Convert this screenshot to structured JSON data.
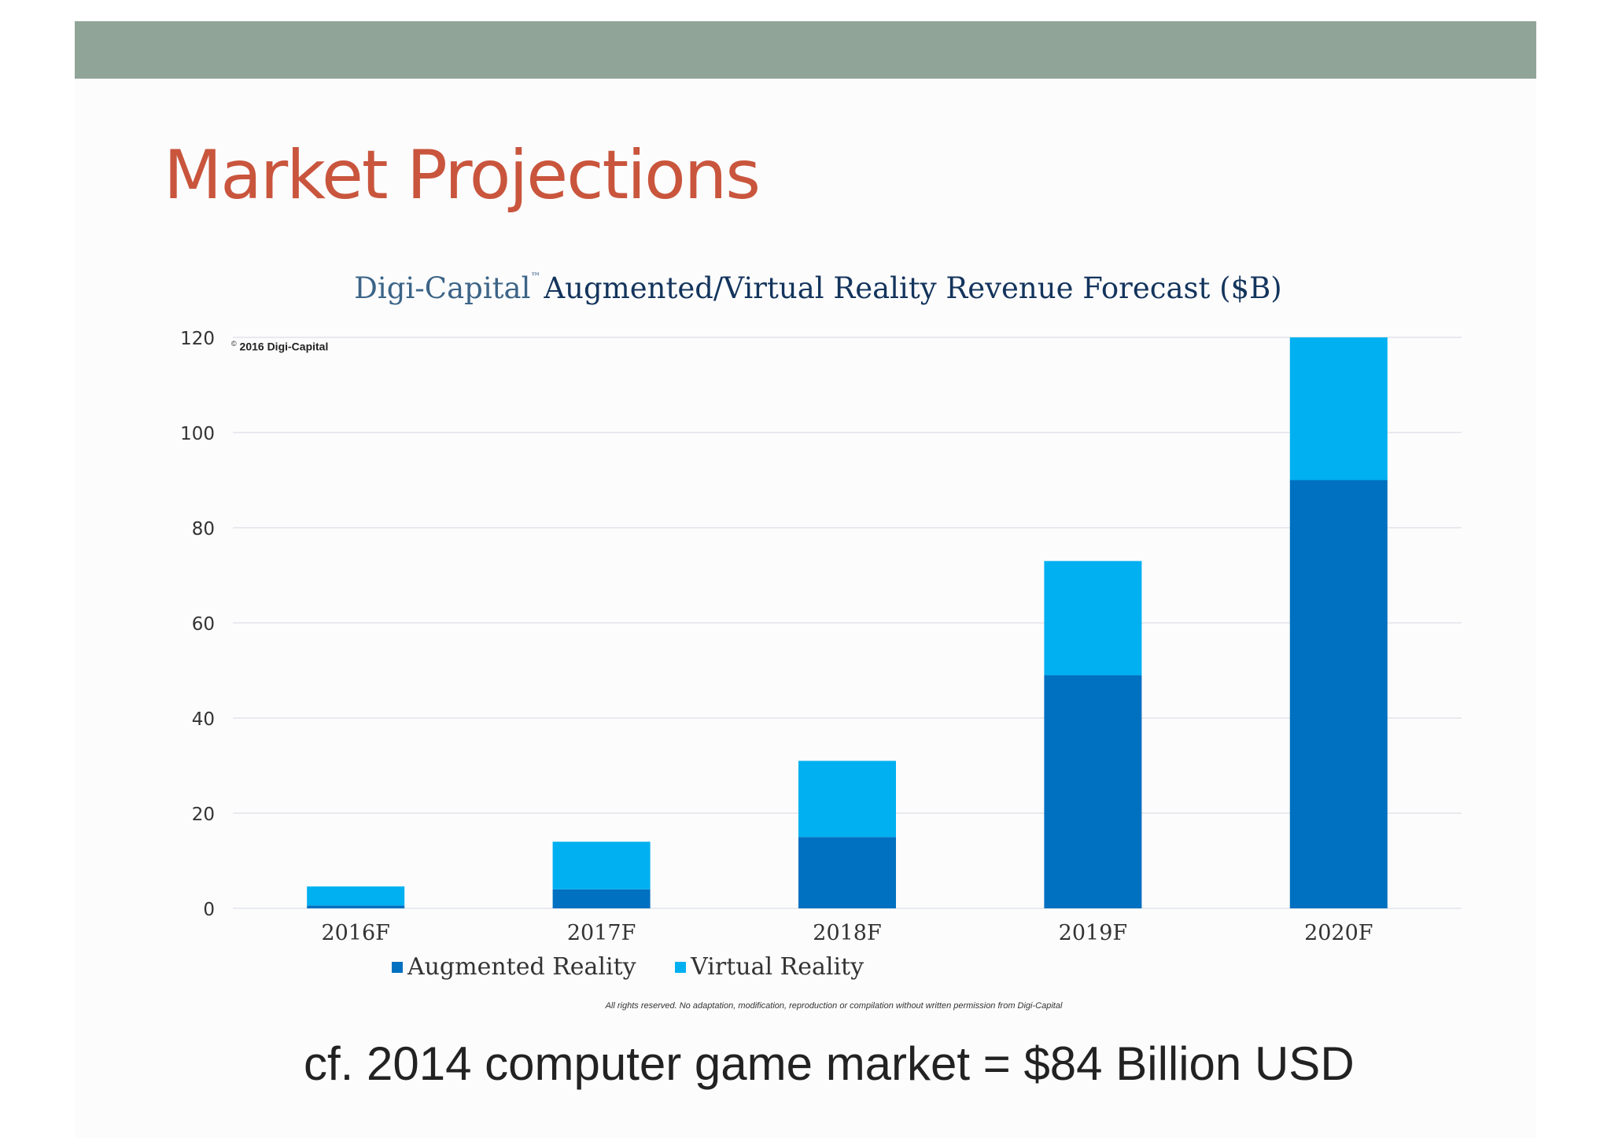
{
  "slide": {
    "title": "Market Projections",
    "footnote": "cf. 2014 computer game market = $84 Billion USD"
  },
  "chart_data": {
    "type": "bar",
    "stacked": true,
    "title_brand": "Digi-Capital",
    "title_tm": "™",
    "title": "Augmented/Virtual Reality Revenue Forecast ($B)",
    "copyright_symbol": "©",
    "copyright": "2016 Digi-Capital",
    "categories": [
      "2016F",
      "2017F",
      "2018F",
      "2019F",
      "2020F"
    ],
    "series": [
      {
        "name": "Augmented Reality",
        "color": "#0070c0",
        "values": [
          0.6,
          4,
          15,
          49,
          90
        ]
      },
      {
        "name": "Virtual Reality",
        "color": "#00b0f0",
        "values": [
          4,
          10,
          16,
          24,
          30
        ]
      }
    ],
    "ylim": [
      0,
      120
    ],
    "yticks": [
      0,
      20,
      40,
      60,
      80,
      100,
      120
    ],
    "grid": true,
    "legend_position": "bottom",
    "rights_notice": "All rights reserved. No adaptation, modification, reproduction or compilation without written permission from Digi-Capital"
  }
}
